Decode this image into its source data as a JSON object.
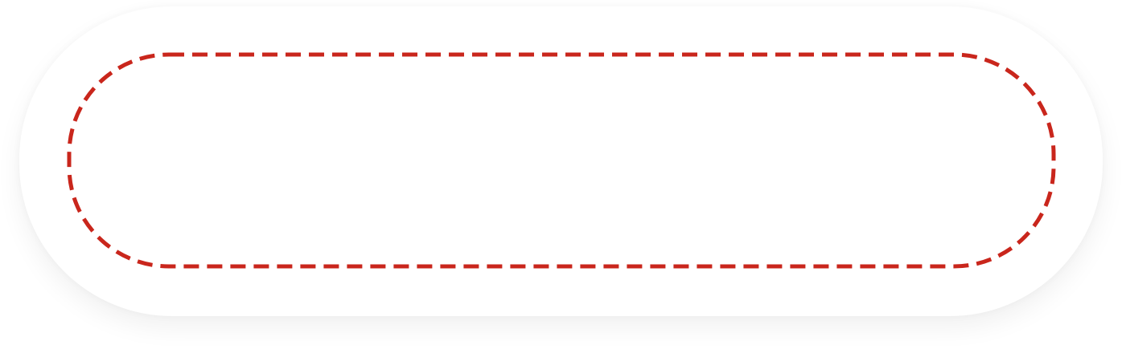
{
  "drop_zone": {
    "label": "",
    "border_color": "#c9261c",
    "background_color": "#ffffff"
  },
  "card": {
    "background_color": "#ffffff"
  }
}
